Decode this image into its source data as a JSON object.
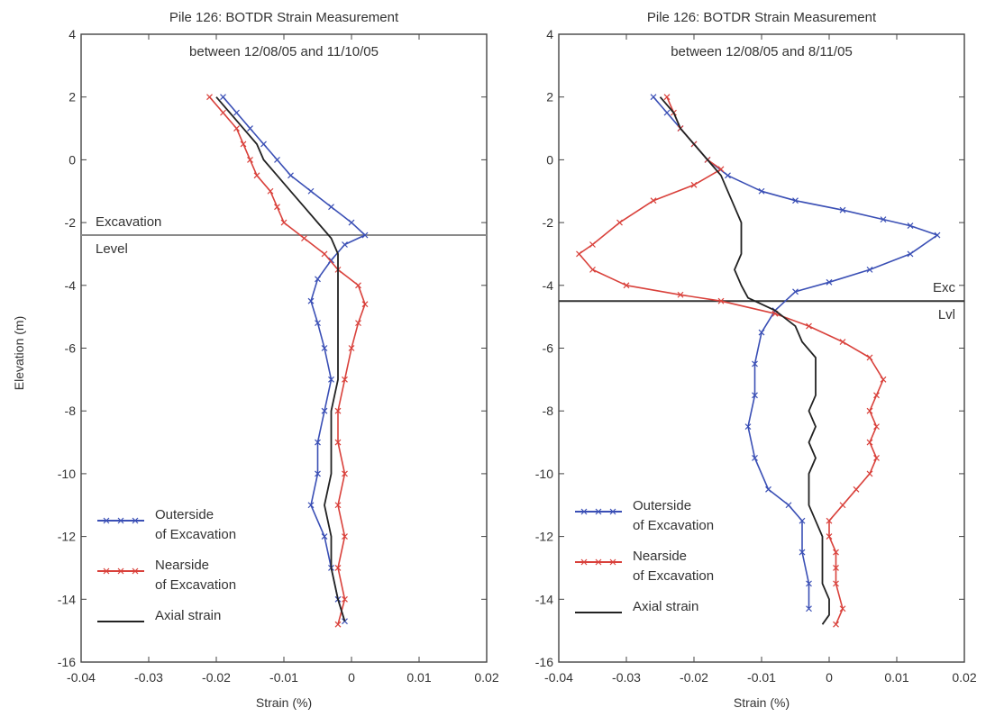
{
  "figure": {
    "ylabel": "Elevation (m)"
  },
  "chart_data": [
    {
      "type": "line",
      "title": "Pile 126: BOTDR Strain Measurement",
      "subtitle": "between 12/08/05 and 11/10/05",
      "xlabel": "Strain (%)",
      "ylabel": "Elevation (m)",
      "xlim": [
        -0.04,
        0.02
      ],
      "ylim": [
        -16,
        4
      ],
      "x_ticks": [
        "-0.04",
        "-0.03",
        "-0.02",
        "-0.01",
        "0",
        "0.01",
        "0.02"
      ],
      "y_ticks": [
        "4",
        "2",
        "0",
        "-2",
        "-4",
        "-6",
        "-8",
        "-10",
        "-12",
        "-14",
        "-16"
      ],
      "grid": false,
      "legend_position": "bottom-left",
      "excavation_level": -2.4,
      "annotations": [
        "Excavation",
        "Level"
      ],
      "series": [
        {
          "name": "Outerside of Excavation",
          "color": "#3a4fb5",
          "marker": "x",
          "points": [
            [
              -0.019,
              2.0
            ],
            [
              -0.017,
              1.5
            ],
            [
              -0.015,
              1.0
            ],
            [
              -0.013,
              0.5
            ],
            [
              -0.011,
              0.0
            ],
            [
              -0.009,
              -0.5
            ],
            [
              -0.006,
              -1.0
            ],
            [
              -0.003,
              -1.5
            ],
            [
              0.0,
              -2.0
            ],
            [
              0.002,
              -2.4
            ],
            [
              -0.001,
              -2.7
            ],
            [
              -0.003,
              -3.2
            ],
            [
              -0.005,
              -3.8
            ],
            [
              -0.006,
              -4.5
            ],
            [
              -0.005,
              -5.2
            ],
            [
              -0.004,
              -6.0
            ],
            [
              -0.003,
              -7.0
            ],
            [
              -0.004,
              -8.0
            ],
            [
              -0.005,
              -9.0
            ],
            [
              -0.005,
              -10.0
            ],
            [
              -0.006,
              -11.0
            ],
            [
              -0.004,
              -12.0
            ],
            [
              -0.003,
              -13.0
            ],
            [
              -0.002,
              -14.0
            ],
            [
              -0.001,
              -14.7
            ]
          ]
        },
        {
          "name": "Nearside of Excavation",
          "color": "#d9413b",
          "marker": "x",
          "points": [
            [
              -0.021,
              2.0
            ],
            [
              -0.019,
              1.5
            ],
            [
              -0.017,
              1.0
            ],
            [
              -0.016,
              0.5
            ],
            [
              -0.015,
              0.0
            ],
            [
              -0.014,
              -0.5
            ],
            [
              -0.012,
              -1.0
            ],
            [
              -0.011,
              -1.5
            ],
            [
              -0.01,
              -2.0
            ],
            [
              -0.007,
              -2.5
            ],
            [
              -0.004,
              -3.0
            ],
            [
              -0.002,
              -3.5
            ],
            [
              0.001,
              -4.0
            ],
            [
              0.002,
              -4.6
            ],
            [
              0.001,
              -5.2
            ],
            [
              0.0,
              -6.0
            ],
            [
              -0.001,
              -7.0
            ],
            [
              -0.002,
              -8.0
            ],
            [
              -0.002,
              -9.0
            ],
            [
              -0.001,
              -10.0
            ],
            [
              -0.002,
              -11.0
            ],
            [
              -0.001,
              -12.0
            ],
            [
              -0.002,
              -13.0
            ],
            [
              -0.001,
              -14.0
            ],
            [
              -0.002,
              -14.8
            ]
          ]
        },
        {
          "name": "Axial strain",
          "color": "#222222",
          "marker": "none",
          "points": [
            [
              -0.02,
              2.0
            ],
            [
              -0.018,
              1.5
            ],
            [
              -0.016,
              1.0
            ],
            [
              -0.014,
              0.5
            ],
            [
              -0.013,
              0.0
            ],
            [
              -0.011,
              -0.5
            ],
            [
              -0.009,
              -1.0
            ],
            [
              -0.007,
              -1.5
            ],
            [
              -0.005,
              -2.0
            ],
            [
              -0.003,
              -2.5
            ],
            [
              -0.002,
              -3.0
            ],
            [
              -0.002,
              -3.5
            ],
            [
              -0.002,
              -4.0
            ],
            [
              -0.002,
              -4.6
            ],
            [
              -0.002,
              -5.2
            ],
            [
              -0.002,
              -6.0
            ],
            [
              -0.002,
              -7.0
            ],
            [
              -0.003,
              -8.0
            ],
            [
              -0.003,
              -9.0
            ],
            [
              -0.003,
              -10.0
            ],
            [
              -0.004,
              -11.0
            ],
            [
              -0.003,
              -12.0
            ],
            [
              -0.003,
              -13.0
            ],
            [
              -0.002,
              -14.0
            ],
            [
              -0.001,
              -14.7
            ]
          ]
        }
      ],
      "legend": [
        {
          "line1": "Outerside",
          "line2": "of Excavation"
        },
        {
          "line1": "Nearside",
          "line2": "of Excavation"
        },
        {
          "line1": "Axial strain",
          "line2": ""
        }
      ]
    },
    {
      "type": "line",
      "title": "Pile 126: BOTDR Strain Measurement",
      "subtitle": "between 12/08/05 and 8/11/05",
      "xlabel": "Strain (%)",
      "ylabel": "",
      "xlim": [
        -0.04,
        0.02
      ],
      "ylim": [
        -16,
        4
      ],
      "x_ticks": [
        "-0.04",
        "-0.03",
        "-0.02",
        "-0.01",
        "0",
        "0.01",
        "0.02"
      ],
      "y_ticks": [
        "4",
        "2",
        "0",
        "-2",
        "-4",
        "-6",
        "-8",
        "-10",
        "-12",
        "-14",
        "-16"
      ],
      "grid": false,
      "legend_position": "bottom-left",
      "excavation_level": -4.5,
      "annotations": [
        "Exc",
        "Lvl"
      ],
      "series": [
        {
          "name": "Outerside of Excavation",
          "color": "#3a4fb5",
          "marker": "x",
          "points": [
            [
              -0.026,
              2.0
            ],
            [
              -0.024,
              1.5
            ],
            [
              -0.022,
              1.0
            ],
            [
              -0.02,
              0.5
            ],
            [
              -0.018,
              0.0
            ],
            [
              -0.015,
              -0.5
            ],
            [
              -0.01,
              -1.0
            ],
            [
              -0.005,
              -1.3
            ],
            [
              0.002,
              -1.6
            ],
            [
              0.008,
              -1.9
            ],
            [
              0.012,
              -2.1
            ],
            [
              0.016,
              -2.4
            ],
            [
              0.012,
              -3.0
            ],
            [
              0.006,
              -3.5
            ],
            [
              0.0,
              -3.9
            ],
            [
              -0.005,
              -4.2
            ],
            [
              -0.008,
              -4.8
            ],
            [
              -0.01,
              -5.5
            ],
            [
              -0.011,
              -6.5
            ],
            [
              -0.011,
              -7.5
            ],
            [
              -0.012,
              -8.5
            ],
            [
              -0.011,
              -9.5
            ],
            [
              -0.009,
              -10.5
            ],
            [
              -0.006,
              -11.0
            ],
            [
              -0.004,
              -11.5
            ],
            [
              -0.004,
              -12.5
            ],
            [
              -0.003,
              -13.5
            ],
            [
              -0.003,
              -14.3
            ]
          ]
        },
        {
          "name": "Nearside of Excavation",
          "color": "#d9413b",
          "marker": "x",
          "points": [
            [
              -0.024,
              2.0
            ],
            [
              -0.023,
              1.5
            ],
            [
              -0.022,
              1.0
            ],
            [
              -0.02,
              0.5
            ],
            [
              -0.018,
              0.0
            ],
            [
              -0.016,
              -0.3
            ],
            [
              -0.02,
              -0.8
            ],
            [
              -0.026,
              -1.3
            ],
            [
              -0.031,
              -2.0
            ],
            [
              -0.035,
              -2.7
            ],
            [
              -0.037,
              -3.0
            ],
            [
              -0.035,
              -3.5
            ],
            [
              -0.03,
              -4.0
            ],
            [
              -0.022,
              -4.3
            ],
            [
              -0.016,
              -4.5
            ],
            [
              -0.008,
              -4.9
            ],
            [
              -0.003,
              -5.3
            ],
            [
              0.002,
              -5.8
            ],
            [
              0.006,
              -6.3
            ],
            [
              0.008,
              -7.0
            ],
            [
              0.007,
              -7.5
            ],
            [
              0.006,
              -8.0
            ],
            [
              0.007,
              -8.5
            ],
            [
              0.006,
              -9.0
            ],
            [
              0.007,
              -9.5
            ],
            [
              0.006,
              -10.0
            ],
            [
              0.004,
              -10.5
            ],
            [
              0.002,
              -11.0
            ],
            [
              0.0,
              -11.5
            ],
            [
              0.0,
              -12.0
            ],
            [
              0.001,
              -12.5
            ],
            [
              0.001,
              -13.0
            ],
            [
              0.001,
              -13.5
            ],
            [
              0.002,
              -14.3
            ],
            [
              0.001,
              -14.8
            ]
          ]
        },
        {
          "name": "Axial strain",
          "color": "#222222",
          "marker": "none",
          "points": [
            [
              -0.025,
              2.0
            ],
            [
              -0.023,
              1.5
            ],
            [
              -0.022,
              1.0
            ],
            [
              -0.02,
              0.5
            ],
            [
              -0.018,
              0.0
            ],
            [
              -0.016,
              -0.5
            ],
            [
              -0.015,
              -1.0
            ],
            [
              -0.014,
              -1.5
            ],
            [
              -0.013,
              -2.0
            ],
            [
              -0.013,
              -2.5
            ],
            [
              -0.013,
              -3.0
            ],
            [
              -0.014,
              -3.5
            ],
            [
              -0.013,
              -4.0
            ],
            [
              -0.012,
              -4.4
            ],
            [
              -0.008,
              -4.8
            ],
            [
              -0.005,
              -5.3
            ],
            [
              -0.004,
              -5.8
            ],
            [
              -0.002,
              -6.3
            ],
            [
              -0.002,
              -7.0
            ],
            [
              -0.002,
              -7.5
            ],
            [
              -0.003,
              -8.0
            ],
            [
              -0.002,
              -8.5
            ],
            [
              -0.003,
              -9.0
            ],
            [
              -0.002,
              -9.5
            ],
            [
              -0.003,
              -10.0
            ],
            [
              -0.003,
              -10.5
            ],
            [
              -0.003,
              -11.0
            ],
            [
              -0.002,
              -11.5
            ],
            [
              -0.001,
              -12.0
            ],
            [
              -0.001,
              -12.5
            ],
            [
              -0.001,
              -13.0
            ],
            [
              -0.001,
              -13.5
            ],
            [
              0.0,
              -14.0
            ],
            [
              0.0,
              -14.5
            ],
            [
              -0.001,
              -14.8
            ]
          ]
        }
      ],
      "legend": [
        {
          "line1": "Outerside",
          "line2": "of Excavation"
        },
        {
          "line1": "Nearside",
          "line2": "of Excavation"
        },
        {
          "line1": "Axial strain",
          "line2": ""
        }
      ]
    }
  ]
}
